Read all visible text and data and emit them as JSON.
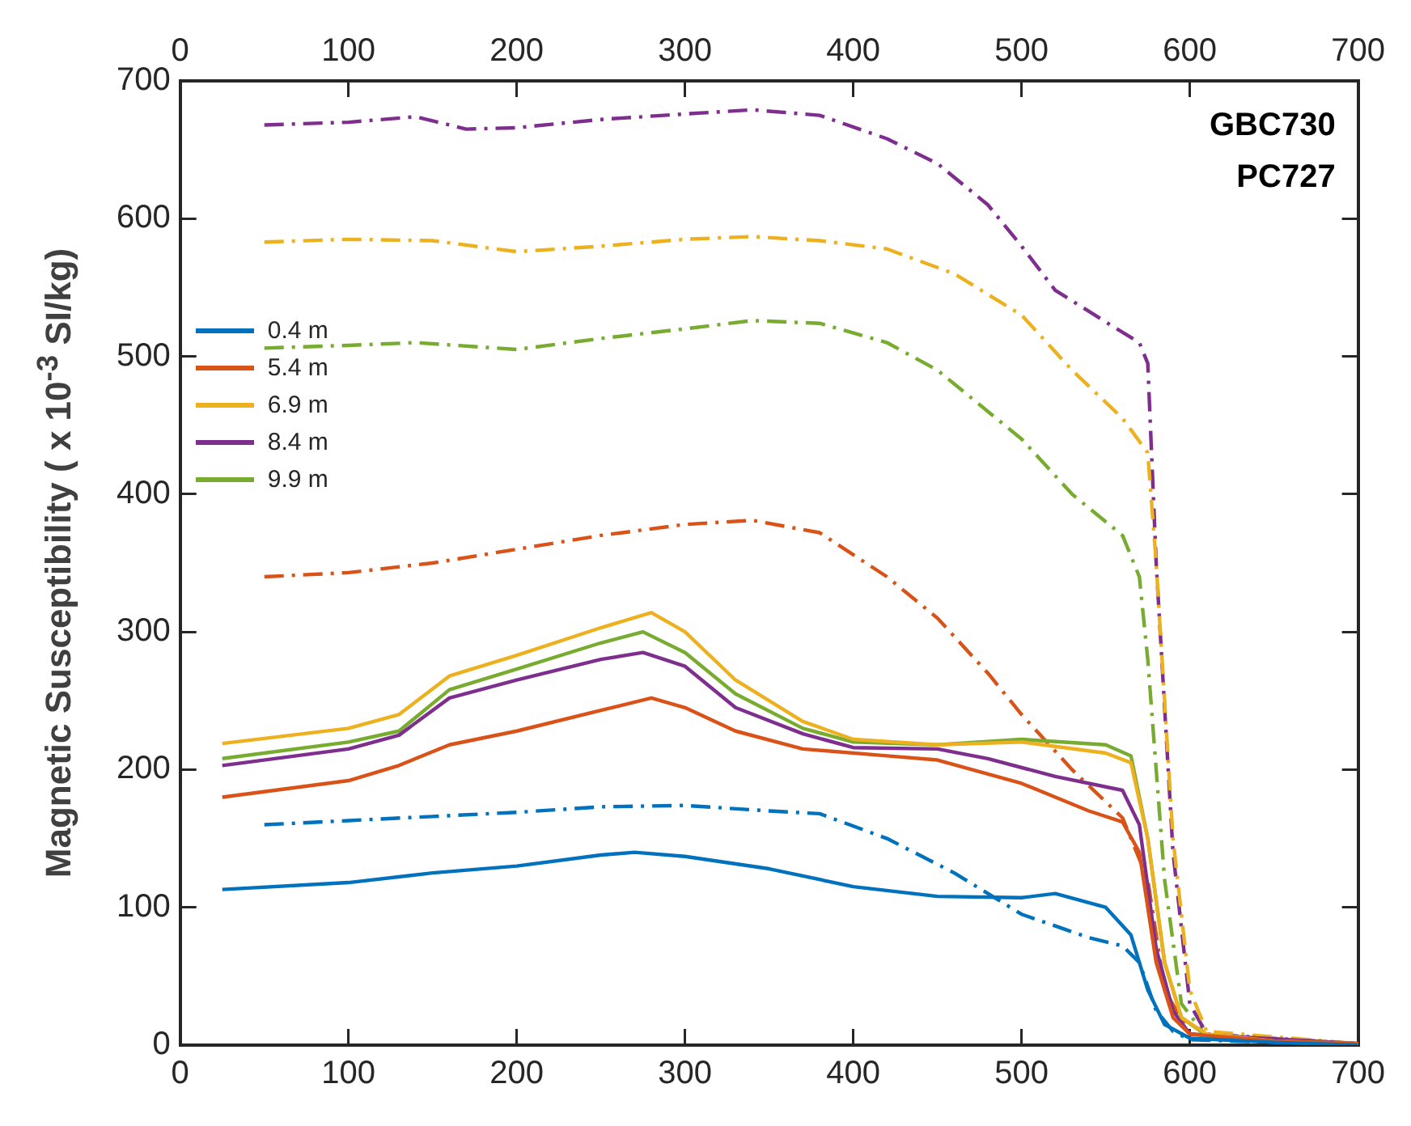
{
  "chart_data": {
    "type": "line",
    "ylabel": "Magnetic Susceptibility ( x 10$^{-3}$ SI/kg)",
    "xlim": [
      0,
      700
    ],
    "xticks": [
      0,
      100,
      200,
      300,
      400,
      500,
      600,
      700
    ],
    "x2lim": [
      0,
      700
    ],
    "x2ticks": [
      0,
      100,
      200,
      300,
      400,
      500,
      600,
      700
    ],
    "ylim": [
      0,
      700
    ],
    "yticks": [
      0,
      100,
      200,
      300,
      400,
      500,
      600,
      700
    ],
    "grid": false,
    "legend": "left",
    "marker": "none",
    "annotations": [
      "GBC730",
      "PC727"
    ],
    "series": [
      {
        "name": "0.4 m",
        "color": "#0072bd",
        "line_style": "solid",
        "x": [
          25,
          100,
          150,
          200,
          250,
          270,
          300,
          350,
          400,
          450,
          500,
          520,
          550,
          565,
          575,
          585,
          600,
          650,
          700
        ],
        "values": [
          113,
          118,
          125,
          130,
          138,
          140,
          137,
          128,
          115,
          108,
          107,
          110,
          100,
          80,
          40,
          15,
          5,
          2,
          0
        ]
      },
      {
        "name": "5.4 m",
        "color": "#d95319",
        "line_style": "solid",
        "x": [
          25,
          100,
          130,
          160,
          200,
          250,
          280,
          300,
          330,
          370,
          420,
          450,
          500,
          540,
          560,
          570,
          580,
          590,
          600,
          650,
          700
        ],
        "values": [
          180,
          192,
          203,
          218,
          228,
          243,
          252,
          245,
          228,
          215,
          210,
          207,
          190,
          170,
          162,
          140,
          60,
          20,
          8,
          3,
          1
        ]
      },
      {
        "name": "6.9 m",
        "color": "#edb120",
        "line_style": "solid",
        "x": [
          25,
          100,
          130,
          160,
          200,
          250,
          280,
          300,
          330,
          370,
          400,
          450,
          500,
          550,
          565,
          575,
          585,
          595,
          610,
          650,
          700
        ],
        "values": [
          219,
          230,
          240,
          268,
          283,
          303,
          314,
          300,
          265,
          235,
          222,
          218,
          220,
          212,
          205,
          150,
          60,
          20,
          8,
          3,
          1
        ]
      },
      {
        "name": "8.4 m",
        "color": "#7e2f8e",
        "line_style": "solid",
        "x": [
          25,
          100,
          130,
          160,
          200,
          250,
          275,
          300,
          330,
          370,
          400,
          450,
          480,
          520,
          560,
          570,
          580,
          590,
          600,
          700
        ],
        "values": [
          203,
          215,
          225,
          252,
          265,
          280,
          285,
          275,
          245,
          226,
          216,
          215,
          208,
          195,
          185,
          160,
          70,
          25,
          8,
          1
        ]
      },
      {
        "name": "9.9 m",
        "color": "#77ac30",
        "line_style": "solid",
        "x": [
          25,
          100,
          130,
          160,
          200,
          250,
          275,
          300,
          330,
          370,
          400,
          450,
          500,
          550,
          565,
          575,
          585,
          595,
          610,
          700
        ],
        "values": [
          208,
          220,
          228,
          258,
          273,
          292,
          300,
          285,
          255,
          230,
          220,
          218,
          222,
          218,
          210,
          150,
          60,
          20,
          7,
          1
        ]
      },
      {
        "color": "#0072bd",
        "line_style": "dashed",
        "x": [
          50,
          100,
          150,
          200,
          250,
          300,
          350,
          380,
          420,
          460,
          500,
          540,
          560,
          570,
          580,
          590,
          600,
          700
        ],
        "values": [
          160,
          163,
          166,
          169,
          173,
          174,
          170,
          168,
          150,
          125,
          95,
          78,
          72,
          60,
          25,
          10,
          4,
          0
        ]
      },
      {
        "color": "#d95319",
        "line_style": "dashed",
        "x": [
          50,
          100,
          150,
          200,
          250,
          300,
          340,
          380,
          420,
          450,
          480,
          500,
          530,
          560,
          575,
          585,
          600,
          700
        ],
        "values": [
          340,
          343,
          350,
          360,
          370,
          378,
          381,
          372,
          340,
          310,
          270,
          240,
          200,
          165,
          120,
          40,
          8,
          1
        ]
      },
      {
        "color": "#edb120",
        "line_style": "dashed",
        "x": [
          50,
          100,
          150,
          200,
          250,
          300,
          340,
          380,
          420,
          460,
          500,
          530,
          560,
          575,
          580,
          590,
          600,
          610,
          700
        ],
        "values": [
          583,
          585,
          584,
          576,
          580,
          585,
          587,
          584,
          578,
          560,
          530,
          490,
          455,
          430,
          350,
          150,
          40,
          10,
          1
        ]
      },
      {
        "color": "#7e2f8e",
        "line_style": "dashed",
        "x": [
          50,
          100,
          140,
          170,
          200,
          250,
          300,
          340,
          380,
          420,
          450,
          480,
          500,
          520,
          550,
          570,
          575,
          580,
          590,
          600,
          610,
          700
        ],
        "values": [
          668,
          670,
          674,
          665,
          666,
          672,
          676,
          679,
          675,
          658,
          640,
          610,
          580,
          548,
          525,
          510,
          495,
          350,
          140,
          30,
          8,
          1
        ]
      },
      {
        "color": "#77ac30",
        "line_style": "dashed",
        "x": [
          50,
          100,
          140,
          200,
          250,
          300,
          340,
          380,
          420,
          450,
          480,
          500,
          530,
          560,
          570,
          575,
          585,
          595,
          610,
          700
        ],
        "values": [
          506,
          508,
          510,
          505,
          513,
          520,
          526,
          524,
          510,
          490,
          460,
          440,
          400,
          370,
          340,
          280,
          120,
          30,
          6,
          1
        ]
      }
    ]
  }
}
